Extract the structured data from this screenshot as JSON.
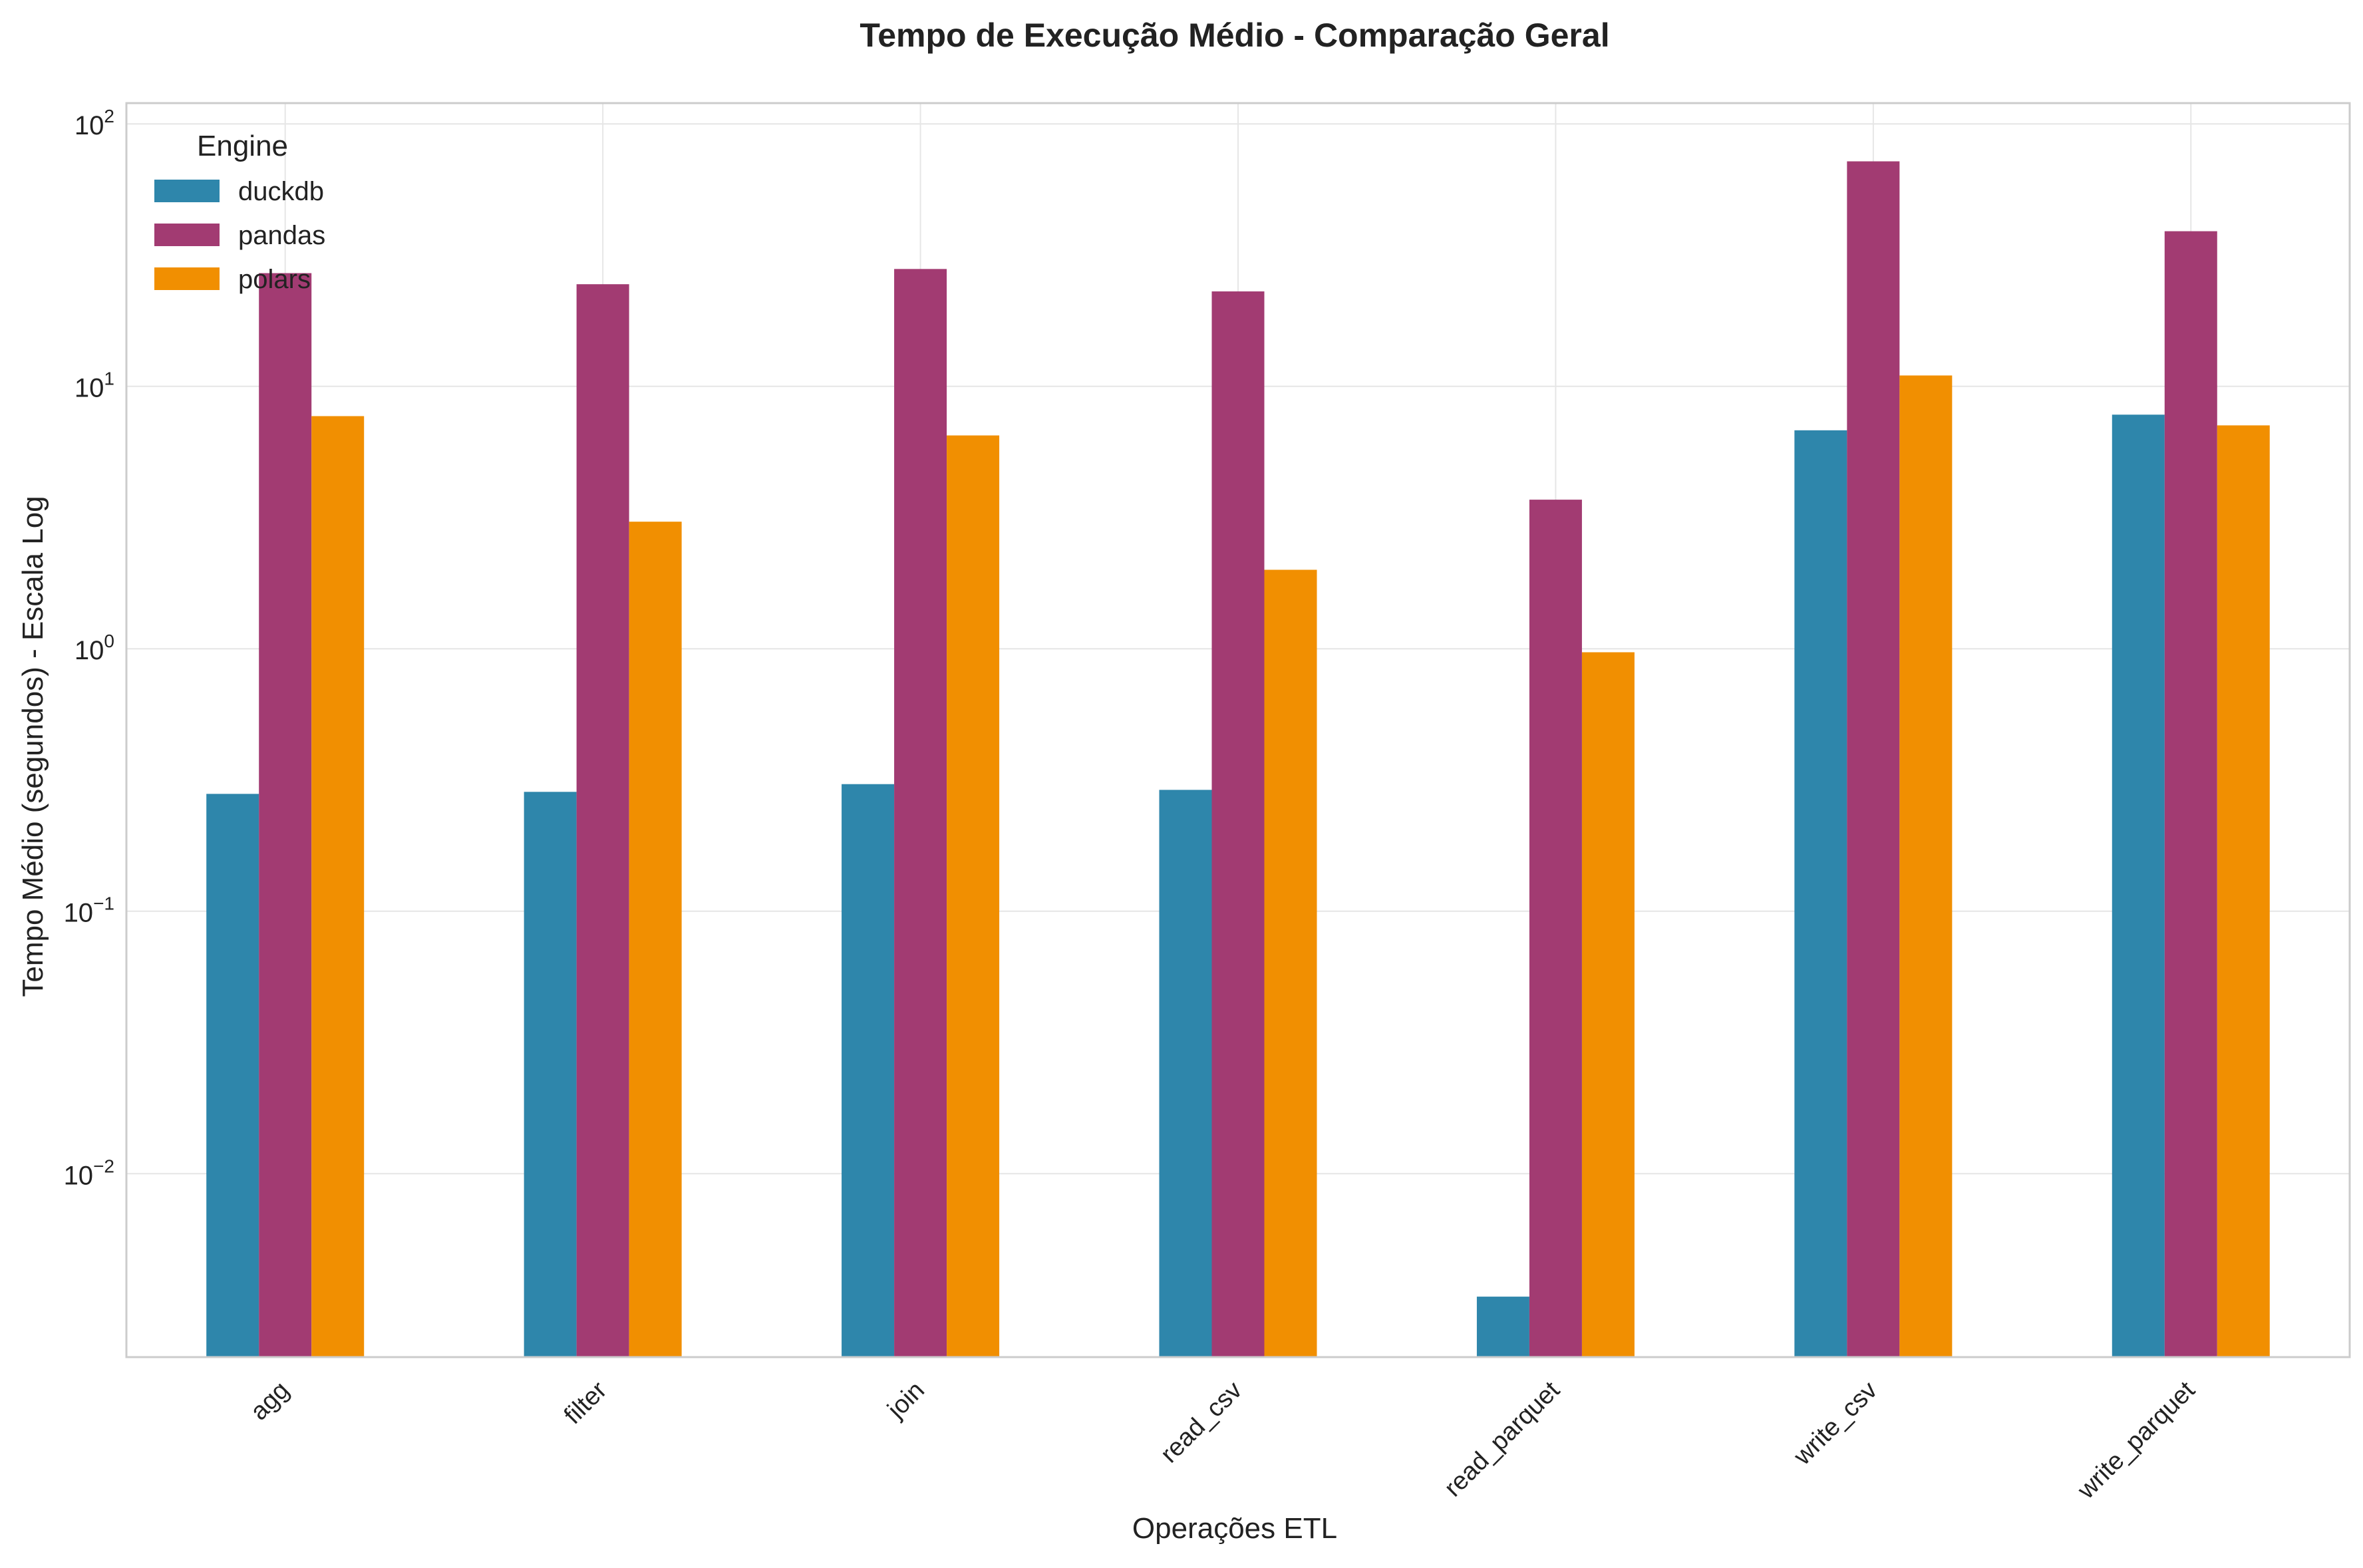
{
  "chart_data": {
    "type": "bar",
    "title": "Tempo de Execução Médio - Comparação Geral",
    "xlabel": "Operações ETL",
    "ylabel": "Tempo Médio (segundos) - Escala Log",
    "yscale": "log",
    "ylim": [
      0.002,
      120
    ],
    "ytick_base": "10",
    "yticks": [
      {
        "value": 0.01,
        "exp": "−2"
      },
      {
        "value": 0.1,
        "exp": "−1"
      },
      {
        "value": 1,
        "exp": "0"
      },
      {
        "value": 10,
        "exp": "1"
      },
      {
        "value": 100,
        "exp": "2"
      }
    ],
    "categories": [
      "agg",
      "filter",
      "join",
      "read_csv",
      "read_parquet",
      "write_csv",
      "write_parquet"
    ],
    "series": [
      {
        "name": "duckdb",
        "color": "#2E86AB",
        "values": [
          0.28,
          0.285,
          0.305,
          0.29,
          0.0034,
          6.8,
          7.8
        ]
      },
      {
        "name": "pandas",
        "color": "#A23B72",
        "values": [
          27.0,
          24.5,
          28.0,
          23.0,
          3.7,
          72.0,
          39.0
        ]
      },
      {
        "name": "polars",
        "color": "#F18F01",
        "values": [
          7.7,
          3.05,
          6.5,
          2.0,
          0.97,
          11.0,
          7.1
        ]
      }
    ],
    "legend": {
      "title": "Engine",
      "placement": "top-left"
    },
    "grid": true
  }
}
